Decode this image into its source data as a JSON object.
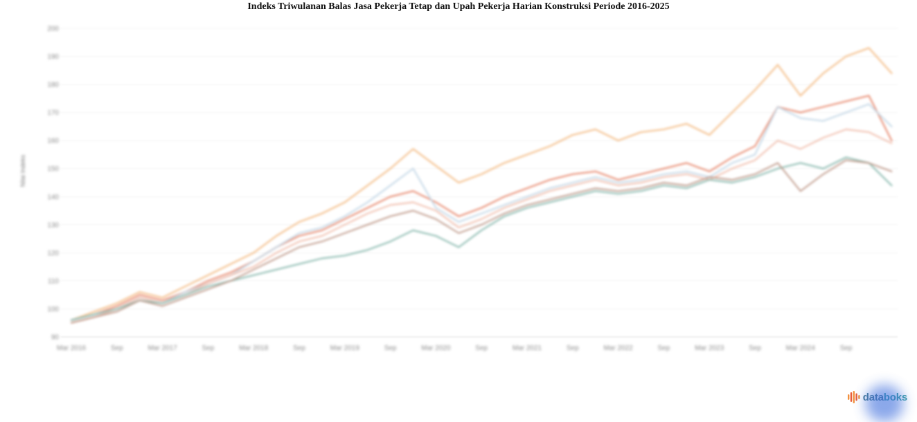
{
  "title": "Indeks Triwulanan Balas Jasa Pekerja Tetap dan Upah Pekerja Harian Konstruksi Periode 2016-2025",
  "y_axis": {
    "title": "Nilai Indeks",
    "ticks": [
      200,
      190,
      180,
      170,
      160,
      150,
      140,
      130,
      120,
      110,
      100,
      90
    ]
  },
  "x_axis": {
    "labels": [
      "Mar 2016",
      "Sep",
      "Mar 2017",
      "Sep",
      "Mar 2018",
      "Sep",
      "Mar 2019",
      "Sep",
      "Mar 2020",
      "Sep",
      "Mar 2021",
      "Sep",
      "Mar 2022",
      "Sep",
      "Mar 2023",
      "Sep",
      "Mar 2024",
      "Sep"
    ]
  },
  "branding": {
    "logo_part1": "data",
    "logo_part2": "boks",
    "icon": "pulse-bars-icon",
    "icon_colors": [
      "#f2913d",
      "#e85d3a"
    ]
  },
  "chart_data": {
    "type": "line",
    "title": "Indeks Triwulanan Balas Jasa Pekerja Tetap dan Upah Pekerja Harian Konstruksi Periode 2016-2025",
    "xlabel": "",
    "ylabel": "Nilai Indeks",
    "ylim": [
      90,
      200
    ],
    "grid": true,
    "legend": "none",
    "x": [
      "Mar 2016",
      "Jun 2016",
      "Sep 2016",
      "Des 2016",
      "Mar 2017",
      "Jun 2017",
      "Sep 2017",
      "Des 2017",
      "Mar 2018",
      "Jun 2018",
      "Sep 2018",
      "Des 2018",
      "Mar 2019",
      "Jun 2019",
      "Sep 2019",
      "Des 2019",
      "Mar 2020",
      "Jun 2020",
      "Sep 2020",
      "Des 2020",
      "Mar 2021",
      "Jun 2021",
      "Sep 2021",
      "Des 2021",
      "Mar 2022",
      "Jun 2022",
      "Sep 2022",
      "Des 2022",
      "Mar 2023",
      "Jun 2023",
      "Sep 2023",
      "Des 2023",
      "Mar 2024",
      "Jun 2024",
      "Sep 2024",
      "Des 2024",
      "Mar 2025"
    ],
    "series": [
      {
        "name": "series_1_oranye",
        "color": "#f5c392",
        "width": 2.6,
        "values": [
          96,
          99,
          102,
          106,
          104,
          108,
          112,
          116,
          120,
          126,
          131,
          134,
          138,
          144,
          150,
          157,
          151,
          145,
          148,
          152,
          155,
          158,
          162,
          164,
          160,
          163,
          164,
          166,
          162,
          170,
          178,
          187,
          176,
          184,
          190,
          193,
          184
        ]
      },
      {
        "name": "series_2_salmon",
        "color": "#e98e74",
        "width": 2.4,
        "values": [
          96,
          98,
          101,
          105,
          103,
          106,
          110,
          113,
          117,
          122,
          126,
          128,
          132,
          136,
          140,
          142,
          138,
          133,
          136,
          140,
          143,
          146,
          148,
          149,
          146,
          148,
          150,
          152,
          149,
          154,
          158,
          172,
          170,
          172,
          174,
          176,
          160
        ]
      },
      {
        "name": "series_3_biru_muda",
        "color": "#c7d9e8",
        "width": 2.4,
        "values": [
          96,
          98,
          100,
          104,
          102,
          106,
          109,
          112,
          117,
          122,
          127,
          129,
          133,
          138,
          144,
          150,
          136,
          131,
          134,
          137,
          140,
          143,
          145,
          147,
          145,
          146,
          148,
          149,
          147,
          152,
          155,
          172,
          168,
          167,
          170,
          173,
          165
        ]
      },
      {
        "name": "series_4_merah_muda",
        "color": "#f1bdab",
        "width": 2.2,
        "values": [
          95,
          97,
          100,
          104,
          102,
          105,
          109,
          112,
          115,
          120,
          124,
          126,
          130,
          134,
          137,
          138,
          135,
          129,
          132,
          136,
          139,
          142,
          144,
          146,
          144,
          145,
          147,
          148,
          146,
          150,
          153,
          160,
          157,
          161,
          164,
          163,
          159
        ]
      },
      {
        "name": "series_5_teal",
        "color": "#8fbdb3",
        "width": 2.4,
        "values": [
          96,
          98,
          100,
          103,
          102,
          105,
          108,
          110,
          112,
          114,
          116,
          118,
          119,
          121,
          124,
          128,
          126,
          122,
          128,
          133,
          136,
          138,
          140,
          142,
          141,
          142,
          144,
          143,
          146,
          145,
          147,
          150,
          152,
          150,
          154,
          152,
          144
        ]
      },
      {
        "name": "series_6_cokelat",
        "color": "#c09a8b",
        "width": 2.2,
        "values": [
          95,
          97,
          99,
          103,
          101,
          104,
          107,
          110,
          114,
          118,
          122,
          124,
          127,
          130,
          133,
          135,
          132,
          127,
          130,
          134,
          137,
          139,
          141,
          143,
          142,
          143,
          145,
          144,
          147,
          146,
          148,
          152,
          142,
          148,
          153,
          152,
          149
        ]
      }
    ]
  }
}
